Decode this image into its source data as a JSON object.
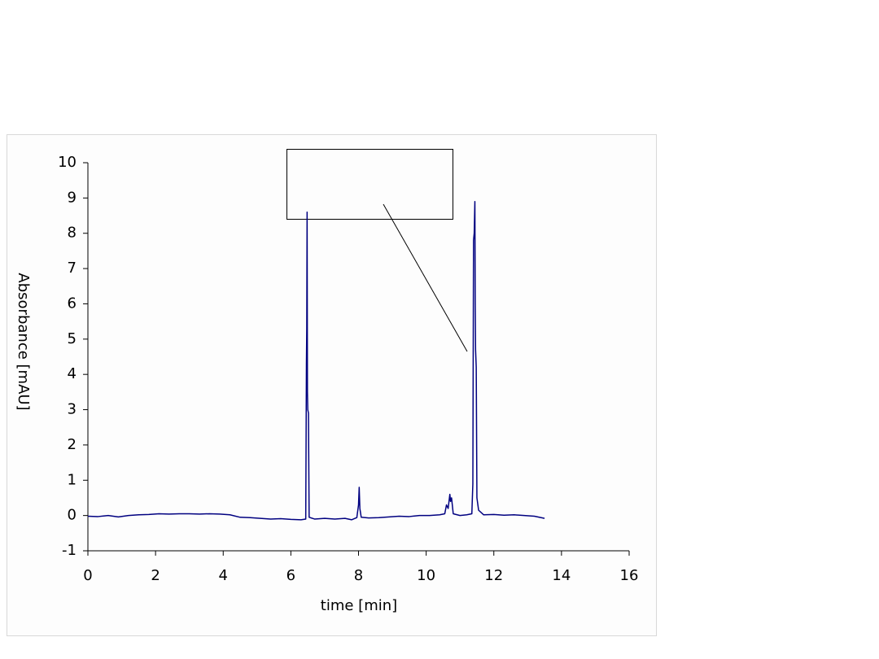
{
  "chart_data": {
    "type": "line",
    "xlabel": "time [min]",
    "ylabel": "Absorbance [mAU]",
    "x": [
      0,
      0.3,
      0.6,
      0.9,
      1.2,
      1.5,
      1.8,
      2.1,
      2.4,
      2.7,
      3.0,
      3.3,
      3.6,
      3.9,
      4.2,
      4.5,
      4.8,
      5.1,
      5.4,
      5.7,
      6.0,
      6.3,
      6.44,
      6.46,
      6.47,
      6.48,
      6.49,
      6.5,
      6.52,
      6.54,
      6.7,
      7.0,
      7.3,
      7.6,
      7.8,
      7.95,
      8.0,
      8.02,
      8.04,
      8.08,
      8.3,
      8.6,
      8.9,
      9.2,
      9.5,
      9.8,
      10.1,
      10.4,
      10.55,
      10.6,
      10.65,
      10.7,
      10.72,
      10.75,
      10.8,
      11.0,
      11.2,
      11.35,
      11.38,
      11.4,
      11.42,
      11.44,
      11.45,
      11.46,
      11.48,
      11.5,
      11.55,
      11.7,
      12.0,
      12.3,
      12.6,
      12.9,
      13.2,
      13.5
    ],
    "values": [
      -0.02,
      -0.03,
      0.0,
      -0.04,
      0.0,
      0.02,
      0.03,
      0.05,
      0.04,
      0.05,
      0.05,
      0.04,
      0.05,
      0.04,
      0.02,
      -0.05,
      -0.06,
      -0.08,
      -0.1,
      -0.09,
      -0.11,
      -0.12,
      -0.1,
      4.3,
      5.3,
      8.6,
      3.5,
      3.0,
      2.9,
      -0.05,
      -0.1,
      -0.08,
      -0.1,
      -0.08,
      -0.12,
      -0.06,
      0.3,
      0.8,
      0.2,
      -0.05,
      -0.07,
      -0.06,
      -0.04,
      -0.02,
      -0.03,
      0.0,
      0.0,
      0.02,
      0.05,
      0.3,
      0.2,
      0.6,
      0.4,
      0.5,
      0.05,
      0.0,
      0.02,
      0.05,
      0.9,
      7.8,
      8.0,
      8.9,
      6.0,
      4.7,
      4.2,
      0.5,
      0.15,
      0.02,
      0.03,
      0.01,
      0.02,
      0.0,
      -0.02,
      -0.08
    ],
    "color": "#000080",
    "xlim": [
      0,
      16
    ],
    "xticks": [
      0,
      2,
      4,
      6,
      8,
      10,
      12,
      14,
      16
    ],
    "ylim": [
      -1,
      10
    ],
    "yticks": [
      -1,
      0,
      1,
      2,
      3,
      4,
      5,
      6,
      7,
      8,
      9,
      10
    ]
  }
}
